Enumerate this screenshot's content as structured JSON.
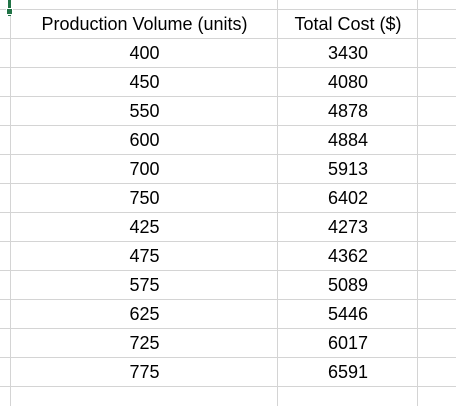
{
  "table": {
    "headers": [
      "Production Volume (units)",
      "Total Cost ($)"
    ],
    "rows": [
      [
        "400",
        "3430"
      ],
      [
        "450",
        "4080"
      ],
      [
        "550",
        "4878"
      ],
      [
        "600",
        "4884"
      ],
      [
        "700",
        "5913"
      ],
      [
        "750",
        "6402"
      ],
      [
        "425",
        "4273"
      ],
      [
        "475",
        "4362"
      ],
      [
        "575",
        "5089"
      ],
      [
        "625",
        "5446"
      ],
      [
        "725",
        "6017"
      ],
      [
        "775",
        "6591"
      ]
    ]
  },
  "colors": {
    "gridline": "#d4d4d4",
    "selection_accent": "#217346"
  }
}
